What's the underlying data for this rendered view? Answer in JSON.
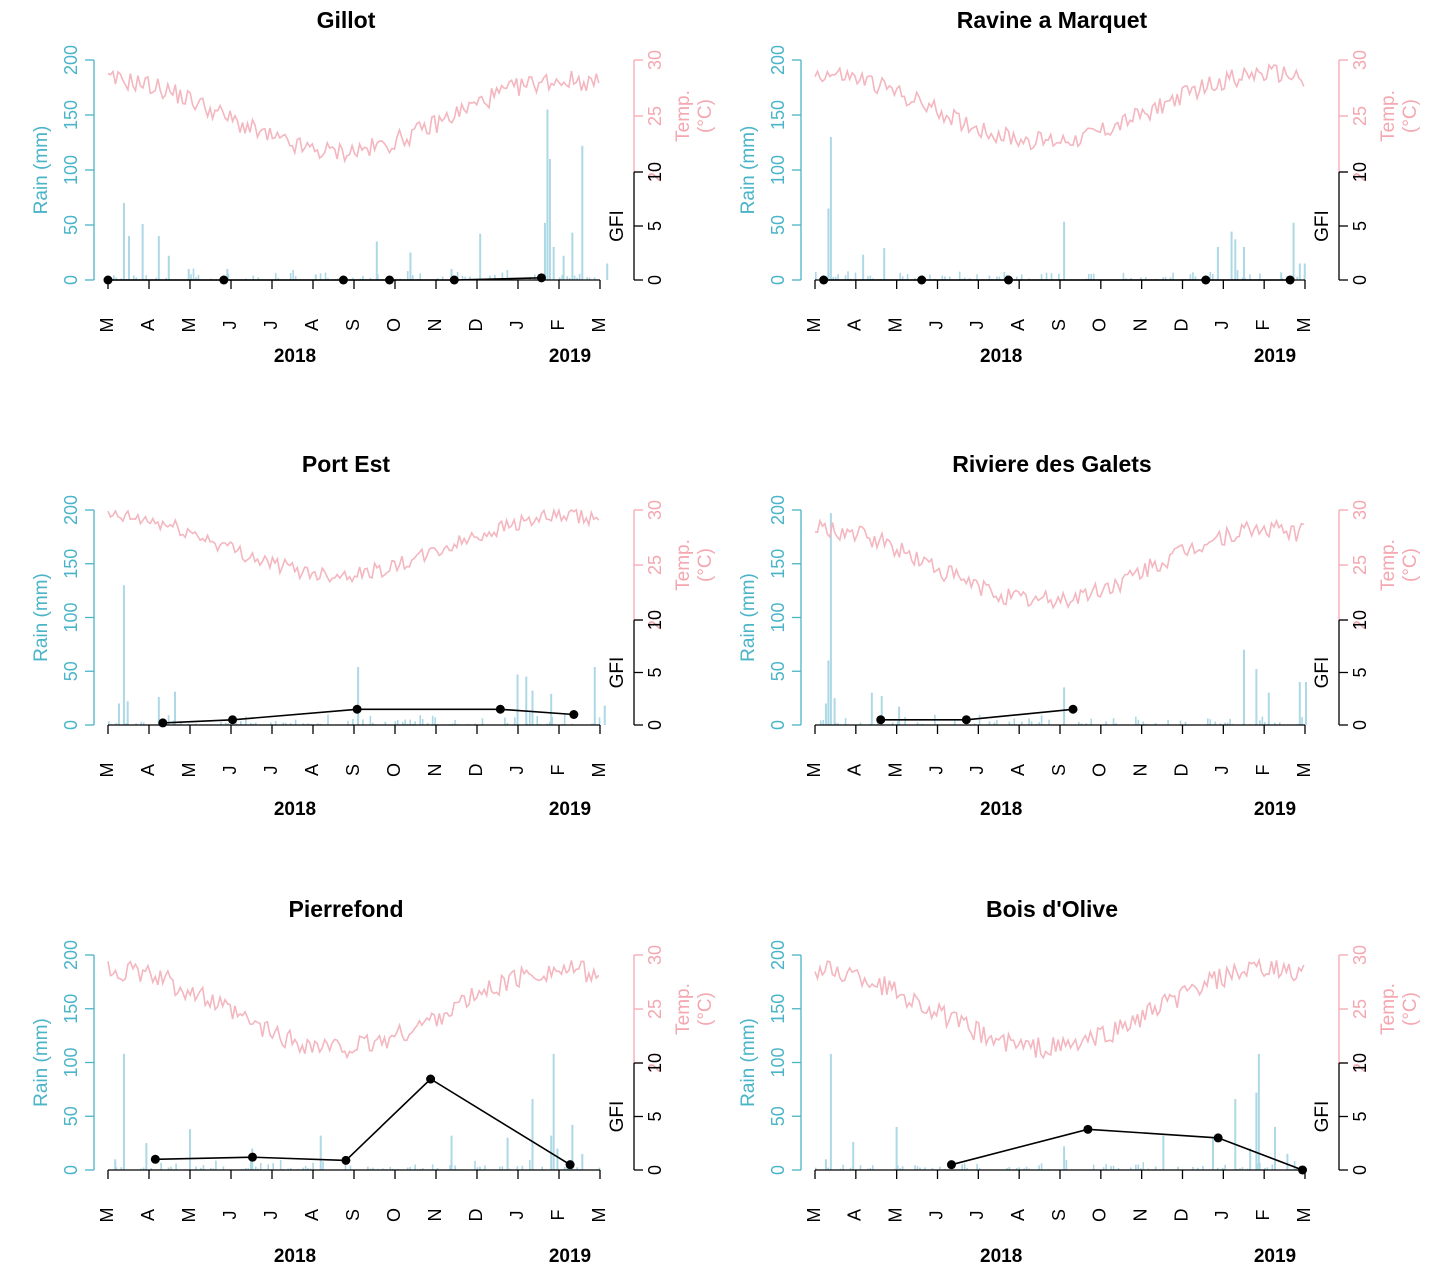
{
  "colors": {
    "rain": "#add8e6",
    "rain_axis": "#4ab4c8",
    "temp": "#f4b6bf",
    "temp_axis": "#f4a7b0",
    "gfi": "#000000"
  },
  "axis_labels": {
    "rain": "Rain (mm)",
    "temp_line1": "Temp.",
    "temp_line2": "(°C)",
    "gfi": "GFI"
  },
  "chart_data": [
    {
      "type": "bar+line",
      "title": "Gillot",
      "month_ticks": [
        "M",
        "A",
        "M",
        "J",
        "J",
        "A",
        "S",
        "O",
        "N",
        "D",
        "J",
        "F",
        "M"
      ],
      "years": [
        "2018",
        "2019"
      ],
      "rain_axis": {
        "label": "Rain (mm)",
        "ticks": [
          0,
          50,
          100,
          150,
          200
        ],
        "range": [
          0,
          200
        ]
      },
      "temp_axis": {
        "label": "Temp. (°C)",
        "ticks": [
          20,
          25,
          30
        ],
        "range": [
          20,
          30
        ]
      },
      "gfi_axis": {
        "label": "GFI",
        "ticks": [
          0,
          5,
          10
        ],
        "range": [
          0,
          10
        ]
      },
      "temp_range": [
        21,
        29
      ],
      "rain_peaks": [
        [
          12,
          70
        ],
        [
          16,
          40
        ],
        [
          27,
          51
        ],
        [
          40,
          40
        ],
        [
          48,
          22
        ],
        [
          64,
          10
        ],
        [
          95,
          10
        ],
        [
          166,
          5
        ],
        [
          215,
          35
        ],
        [
          242,
          25
        ],
        [
          275,
          10
        ],
        [
          298,
          42
        ],
        [
          350,
          52
        ],
        [
          352,
          155
        ],
        [
          354,
          110
        ],
        [
          357,
          30
        ],
        [
          365,
          22
        ],
        [
          372,
          43
        ],
        [
          380,
          122
        ],
        [
          400,
          15
        ]
      ],
      "gfi_points": [
        [
          0,
          0
        ],
        [
          93,
          0
        ],
        [
          189,
          0
        ],
        [
          226,
          0
        ],
        [
          278,
          0
        ],
        [
          348,
          0.2
        ]
      ]
    },
    {
      "type": "bar+line",
      "title": "Ravine a Marquet",
      "month_ticks": [
        "M",
        "A",
        "M",
        "J",
        "J",
        "A",
        "S",
        "O",
        "N",
        "D",
        "J",
        "F",
        "M"
      ],
      "years": [
        "2018",
        "2019"
      ],
      "rain_axis": {
        "label": "Rain (mm)",
        "ticks": [
          0,
          50,
          100,
          150,
          200
        ],
        "range": [
          0,
          200
        ]
      },
      "temp_axis": {
        "label": "Temp. (°C)",
        "ticks": [
          20,
          25,
          30
        ],
        "range": [
          20,
          30
        ]
      },
      "gfi_axis": {
        "label": "GFI",
        "ticks": [
          0,
          5,
          10
        ],
        "range": [
          0,
          10
        ]
      },
      "temp_range": [
        22,
        29.5
      ],
      "rain_peaks": [
        [
          10,
          65
        ],
        [
          12,
          130
        ],
        [
          38,
          23
        ],
        [
          55,
          29
        ],
        [
          200,
          53
        ],
        [
          324,
          30
        ],
        [
          335,
          44
        ],
        [
          338,
          37
        ],
        [
          345,
          30
        ],
        [
          375,
          7
        ],
        [
          385,
          52
        ],
        [
          390,
          15
        ],
        [
          394,
          15
        ]
      ],
      "gfi_points": [
        [
          7,
          0
        ],
        [
          86,
          0
        ],
        [
          156,
          0
        ],
        [
          315,
          0
        ],
        [
          383,
          0
        ]
      ]
    },
    {
      "type": "bar+line",
      "title": "Port Est",
      "month_ticks": [
        "M",
        "A",
        "M",
        "J",
        "J",
        "A",
        "S",
        "O",
        "N",
        "D",
        "J",
        "F",
        "M"
      ],
      "years": [
        "2018",
        "2019"
      ],
      "rain_axis": {
        "label": "Rain (mm)",
        "ticks": [
          0,
          50,
          100,
          150,
          200
        ],
        "range": [
          0,
          200
        ]
      },
      "temp_axis": {
        "label": "Temp. (°C)",
        "ticks": [
          20,
          25,
          30
        ],
        "range": [
          20,
          30
        ]
      },
      "gfi_axis": {
        "label": "GFI",
        "ticks": [
          0,
          5,
          10
        ],
        "range": [
          0,
          10
        ]
      },
      "temp_range": [
        23.5,
        30
      ],
      "rain_peaks": [
        [
          8,
          20
        ],
        [
          12,
          130
        ],
        [
          15,
          22
        ],
        [
          40,
          26
        ],
        [
          53,
          31
        ],
        [
          200,
          54
        ],
        [
          328,
          47
        ],
        [
          335,
          45
        ],
        [
          340,
          32
        ],
        [
          355,
          29
        ],
        [
          390,
          54
        ],
        [
          398,
          18
        ]
      ],
      "gfi_points": [
        [
          44,
          0.2
        ],
        [
          100,
          0.5
        ],
        [
          200,
          1.5
        ],
        [
          315,
          1.5
        ],
        [
          374,
          1.0
        ]
      ]
    },
    {
      "type": "bar+line",
      "title": "Riviere des Galets",
      "month_ticks": [
        "M",
        "A",
        "M",
        "J",
        "J",
        "A",
        "S",
        "O",
        "N",
        "D",
        "J",
        "F",
        "M"
      ],
      "years": [
        "2018",
        "2019"
      ],
      "rain_axis": {
        "label": "Rain (mm)",
        "ticks": [
          0,
          50,
          100,
          150,
          200
        ],
        "range": [
          0,
          200
        ]
      },
      "temp_axis": {
        "label": "Temp. (°C)",
        "ticks": [
          20,
          25,
          30
        ],
        "range": [
          20,
          30
        ]
      },
      "gfi_axis": {
        "label": "GFI",
        "ticks": [
          0,
          5,
          10
        ],
        "range": [
          0,
          10
        ]
      },
      "temp_range": [
        21,
        29
      ],
      "rain_peaks": [
        [
          8,
          20
        ],
        [
          10,
          60
        ],
        [
          12,
          197
        ],
        [
          15,
          25
        ],
        [
          45,
          30
        ],
        [
          53,
          27
        ],
        [
          67,
          17
        ],
        [
          200,
          35
        ],
        [
          345,
          70
        ],
        [
          355,
          52
        ],
        [
          365,
          30
        ],
        [
          390,
          40
        ],
        [
          395,
          40
        ]
      ],
      "gfi_points": [
        [
          53,
          0.5
        ],
        [
          122,
          0.5
        ],
        [
          208,
          1.5
        ]
      ]
    },
    {
      "type": "bar+line",
      "title": "Pierrefond",
      "month_ticks": [
        "M",
        "A",
        "M",
        "J",
        "J",
        "A",
        "S",
        "O",
        "N",
        "D",
        "J",
        "F",
        "M"
      ],
      "years": [
        "2018",
        "2019"
      ],
      "rain_axis": {
        "label": "Rain (mm)",
        "ticks": [
          0,
          50,
          100,
          150,
          200
        ],
        "range": [
          0,
          200
        ]
      },
      "temp_axis": {
        "label": "Temp. (°C)",
        "ticks": [
          20,
          25,
          30
        ],
        "range": [
          20,
          30
        ]
      },
      "gfi_axis": {
        "label": "GFI",
        "ticks": [
          0,
          5,
          10
        ],
        "range": [
          0,
          10
        ]
      },
      "temp_range": [
        20.5,
        29.5
      ],
      "rain_peaks": [
        [
          5,
          10
        ],
        [
          12,
          108
        ],
        [
          30,
          25
        ],
        [
          65,
          38
        ],
        [
          115,
          20
        ],
        [
          170,
          32
        ],
        [
          275,
          32
        ],
        [
          320,
          30
        ],
        [
          340,
          66
        ],
        [
          355,
          32
        ],
        [
          357,
          108
        ],
        [
          360,
          20
        ],
        [
          372,
          42
        ],
        [
          380,
          15
        ]
      ],
      "gfi_points": [
        [
          38,
          1.0
        ],
        [
          116,
          1.2
        ],
        [
          191,
          0.9
        ],
        [
          259,
          8.5
        ],
        [
          371,
          0.5
        ]
      ]
    },
    {
      "type": "bar+line",
      "title": "Bois d'Olive",
      "month_ticks": [
        "M",
        "A",
        "M",
        "J",
        "J",
        "A",
        "S",
        "O",
        "N",
        "D",
        "J",
        "F",
        "M"
      ],
      "years": [
        "2018",
        "2019"
      ],
      "rain_axis": {
        "label": "Rain (mm)",
        "ticks": [
          0,
          50,
          100,
          150,
          200
        ],
        "range": [
          0,
          200
        ]
      },
      "temp_axis": {
        "label": "Temp. (°C)",
        "ticks": [
          20,
          25,
          30
        ],
        "range": [
          20,
          30
        ]
      },
      "gfi_axis": {
        "label": "GFI",
        "ticks": [
          0,
          5,
          10
        ],
        "range": [
          0,
          10
        ]
      },
      "temp_range": [
        20.5,
        29.5
      ],
      "rain_peaks": [
        [
          8,
          10
        ],
        [
          12,
          108
        ],
        [
          30,
          26
        ],
        [
          65,
          40
        ],
        [
          200,
          22
        ],
        [
          280,
          32
        ],
        [
          320,
          30
        ],
        [
          338,
          66
        ],
        [
          350,
          20
        ],
        [
          355,
          72
        ],
        [
          357,
          108
        ],
        [
          370,
          40
        ],
        [
          380,
          15
        ]
      ],
      "gfi_points": [
        [
          110,
          0.5
        ],
        [
          220,
          3.8
        ],
        [
          325,
          3.0
        ],
        [
          393,
          0
        ]
      ]
    }
  ]
}
